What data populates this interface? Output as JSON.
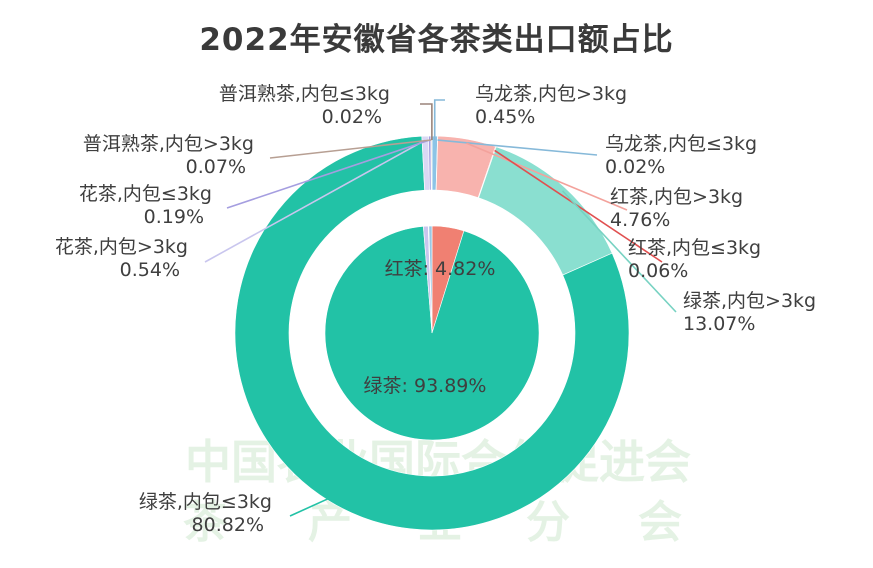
{
  "title": "2022年安徽省各茶类出口额占比",
  "watermark": {
    "line1": "中国农业国际合作促进会",
    "line2": [
      "茶",
      "产",
      "业",
      "分",
      "会"
    ]
  },
  "chart_data": {
    "type": "pie",
    "title": "2022年安徽省各茶类出口额占比",
    "inner": [
      {
        "name": "红茶",
        "value": 4.82,
        "label": "红茶: 4.82%",
        "color": "#f08072"
      },
      {
        "name": "绿茶",
        "value": 93.89,
        "label": "绿茶: 93.89%",
        "color": "#22c2a6"
      },
      {
        "name": "花茶",
        "value": 0.73,
        "label": "",
        "color": "#c9c6ee"
      },
      {
        "name": "普洱熟茶",
        "value": 0.09,
        "label": "",
        "color": "#b0b0b0"
      },
      {
        "name": "乌龙茶",
        "value": 0.47,
        "label": "",
        "color": "#9ac8e4"
      }
    ],
    "outer": [
      {
        "name": "乌龙茶,内包>3kg",
        "value": 0.45,
        "line1": "乌龙茶,内包>3kg",
        "line2": "0.45%",
        "color": "#8cc4e6",
        "line_color": "#86b9d9"
      },
      {
        "name": "乌龙茶,内包≤3kg",
        "value": 0.02,
        "line1": "乌龙茶,内包≤3kg",
        "line2": "0.02%",
        "color": "#6fb3dc",
        "line_color": "#86b9d9"
      },
      {
        "name": "红茶,内包>3kg",
        "value": 4.76,
        "line1": "红茶,内包>3kg",
        "line2": "4.76%",
        "color": "#f8b3ae",
        "line_color": "#f3a29c"
      },
      {
        "name": "红茶,内包≤3kg",
        "value": 0.06,
        "line1": "红茶,内包≤3kg",
        "line2": "0.06%",
        "color": "#e85a5a",
        "line_color": "#e05050"
      },
      {
        "name": "绿茶,内包>3kg",
        "value": 13.07,
        "line1": "绿茶,内包>3kg",
        "line2": "13.07%",
        "color": "#8adfd0",
        "line_color": "#77d2c2"
      },
      {
        "name": "绿茶,内包≤3kg",
        "value": 80.82,
        "line1": "绿茶,内包≤3kg",
        "line2": "80.82%",
        "color": "#22c2a6",
        "line_color": "#22c2a6"
      },
      {
        "name": "花茶,内包>3kg",
        "value": 0.54,
        "line1": "花茶,内包>3kg",
        "line2": "0.54%",
        "color": "#dad8f4",
        "line_color": "#c9c6ee"
      },
      {
        "name": "花茶,内包≤3kg",
        "value": 0.19,
        "line1": "花茶,内包≤3kg",
        "line2": "0.19%",
        "color": "#a59ee0",
        "line_color": "#a59ee0"
      },
      {
        "name": "普洱熟茶,内包>3kg",
        "value": 0.07,
        "line1": "普洱熟茶,内包>3kg",
        "line2": "0.07%",
        "color": "#c4b0a6",
        "line_color": "#b79f93"
      },
      {
        "name": "普洱熟茶,内包≤3kg",
        "value": 0.02,
        "line1": "普洱熟茶,内包≤3kg",
        "line2": "0.02%",
        "color": "#9a847a",
        "line_color": "#9a847a"
      }
    ]
  }
}
